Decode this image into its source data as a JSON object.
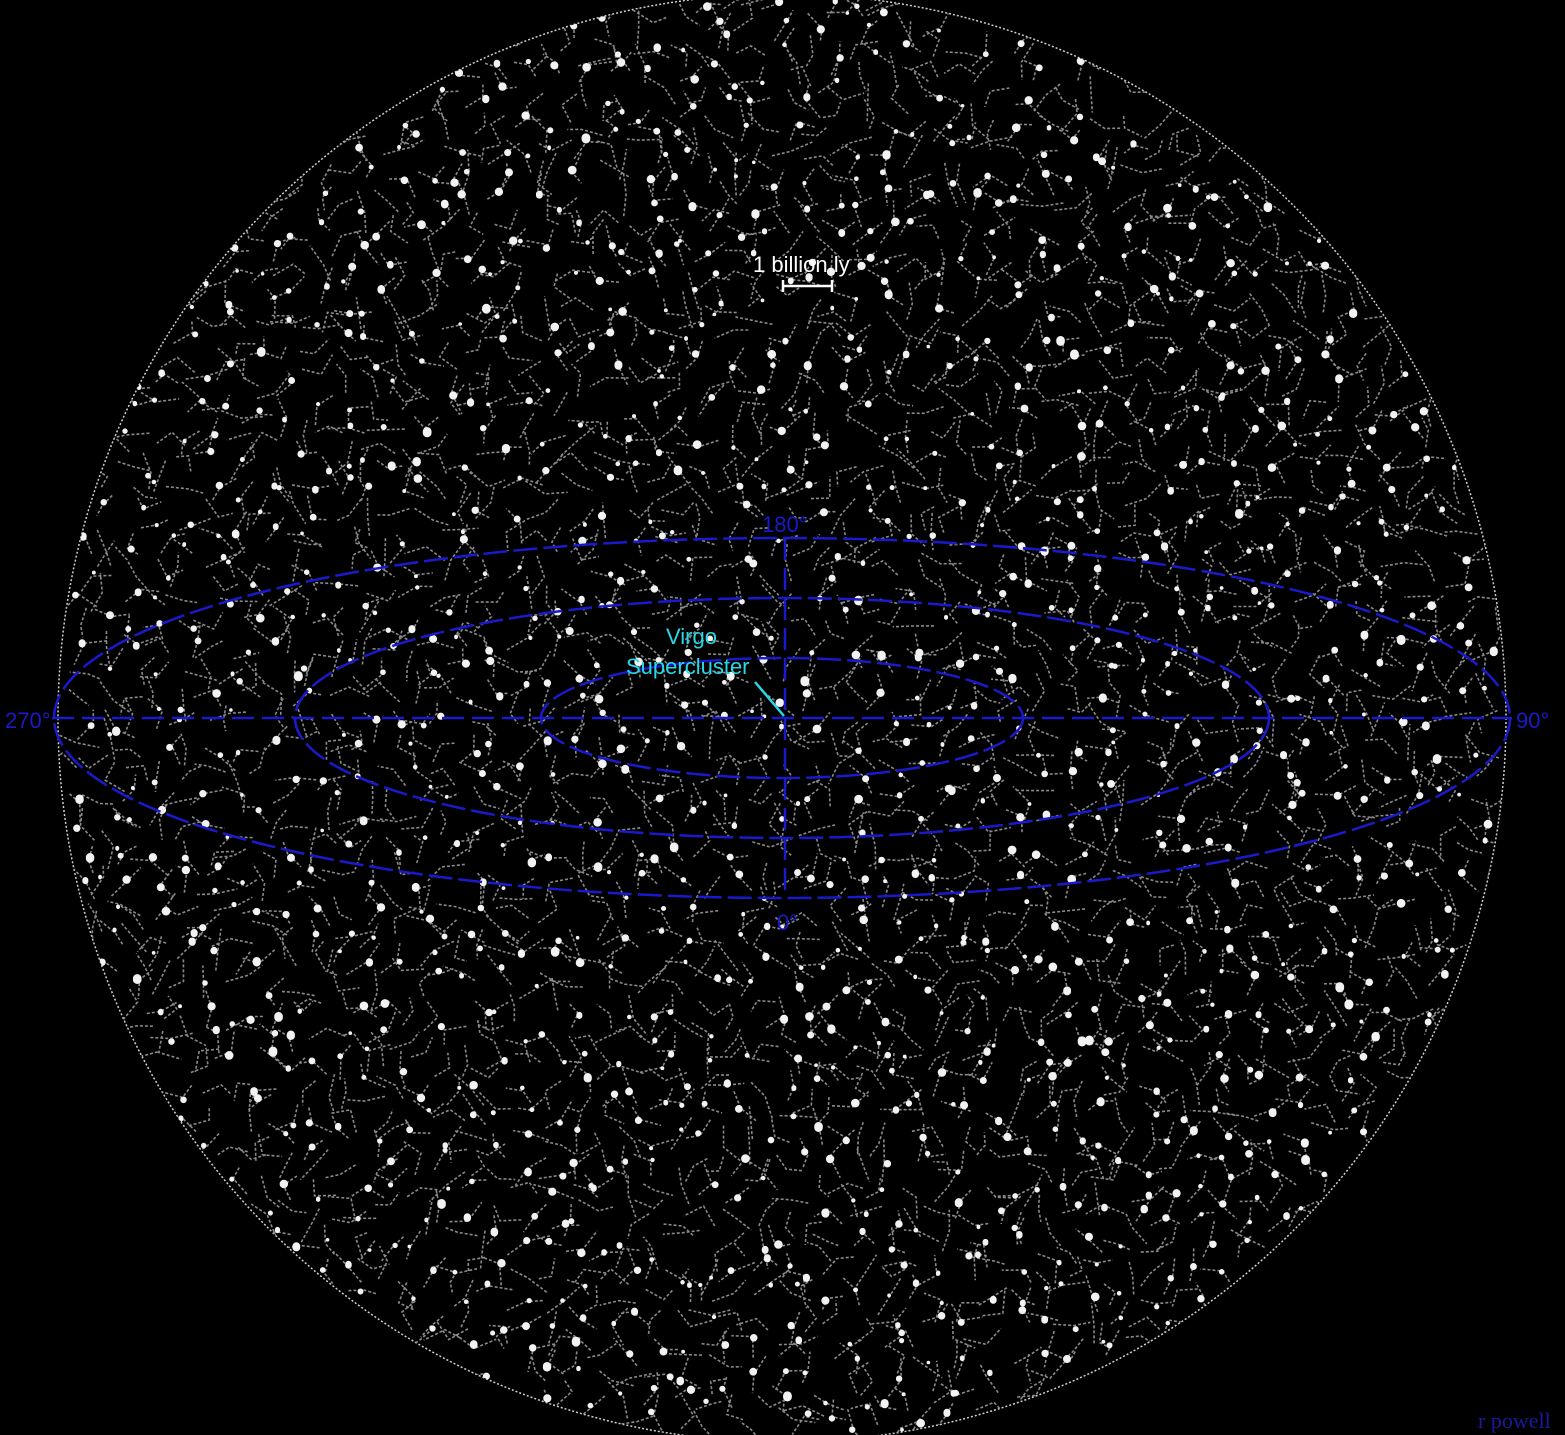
{
  "scale_bar": {
    "label": "1 billion ly"
  },
  "annotation": {
    "line1": "Virgo",
    "line2": "Supercluster"
  },
  "angle_labels": {
    "top": "180°",
    "bottom": "0°",
    "left": "270°",
    "right": "90°"
  },
  "credit": "r powell",
  "colors": {
    "background": "#000000",
    "galaxies": "#ffffff",
    "grid": "#1a1acc",
    "annotation": "#29d8e6"
  }
}
